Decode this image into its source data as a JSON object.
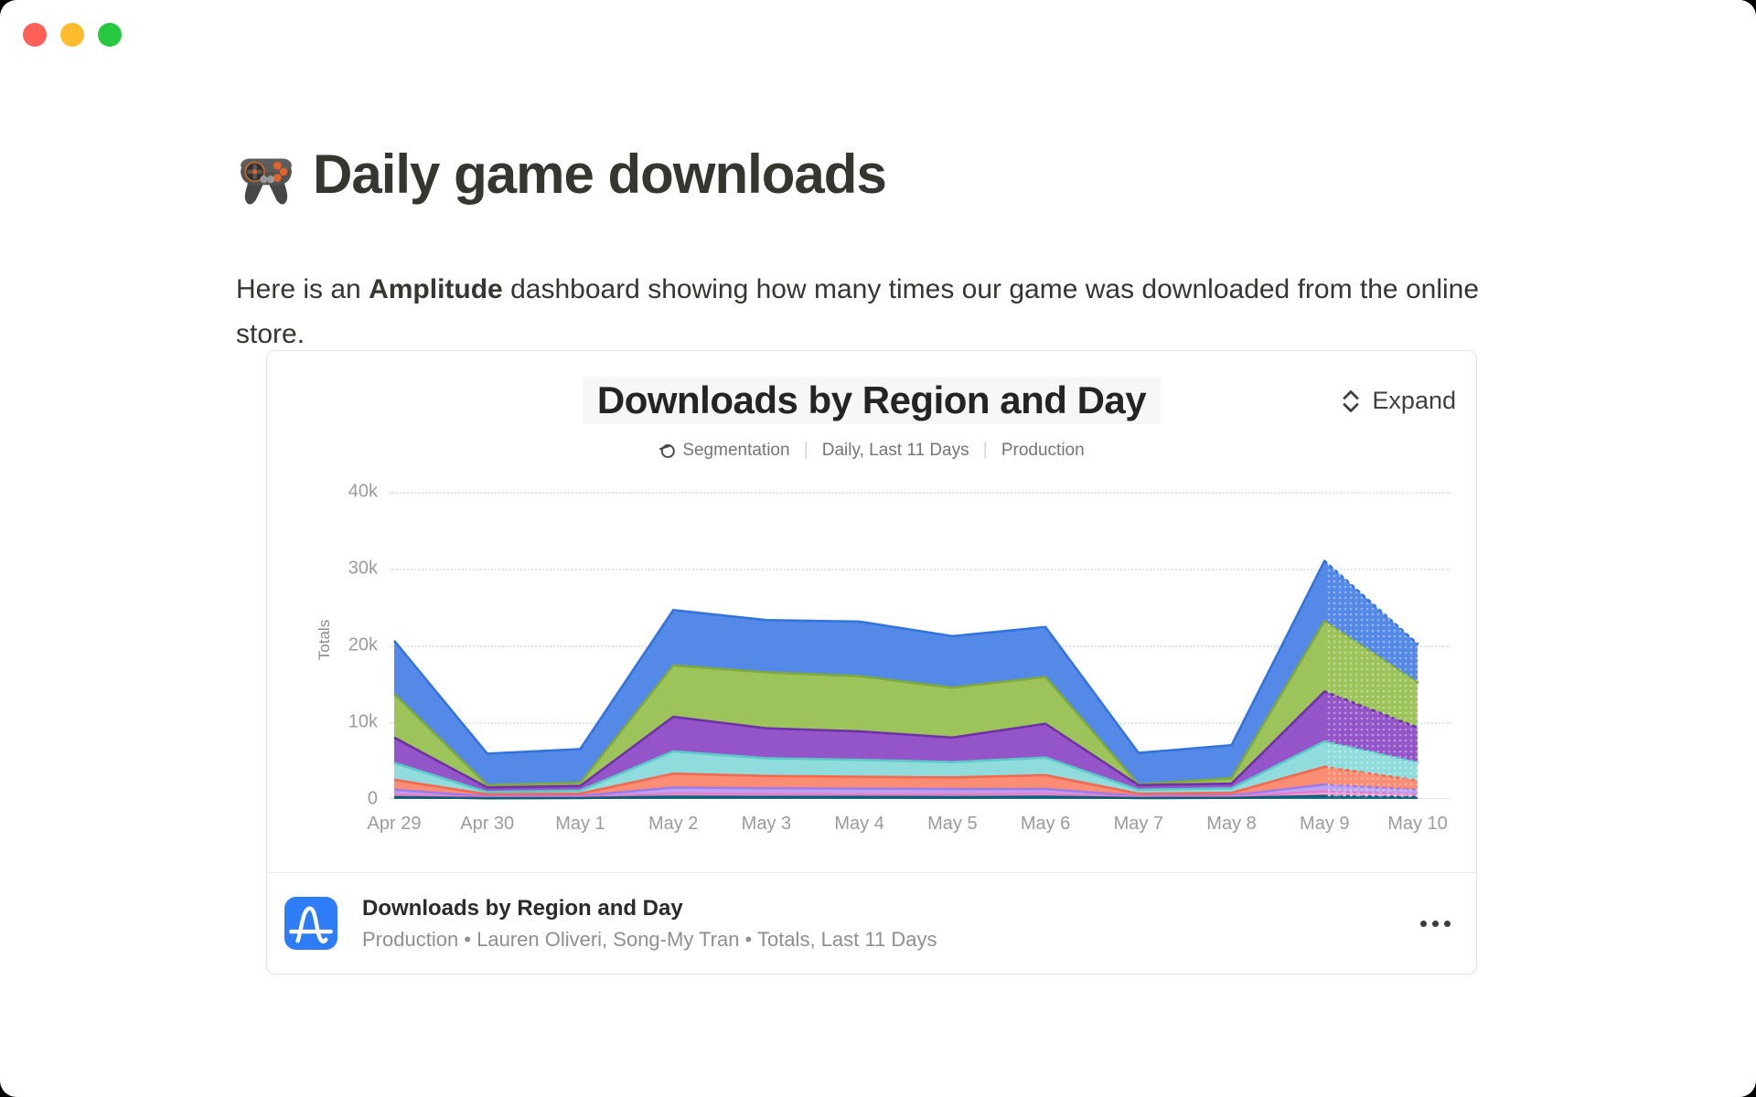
{
  "window": {
    "traffic_lights": [
      "close",
      "minimize",
      "zoom"
    ]
  },
  "page": {
    "title": "Daily game downloads",
    "title_icon": "gamepad-emoji",
    "intro_part1": "Here is an ",
    "intro_bold": "Amplitude",
    "intro_part2": " dashboard showing how many times our game was downloaded from the online store."
  },
  "card": {
    "header": {
      "title": "Downloads by Region and Day",
      "expand_label": "Expand"
    },
    "meta": {
      "chart_type": "Segmentation",
      "interval": "Daily, Last 11 Days",
      "environment": "Production"
    },
    "footer": {
      "title": "Downloads by Region and Day",
      "subtitle": "Production • Lauren Oliveri, Song-My Tran • Totals, Last 11 Days"
    }
  },
  "colors": {
    "amplitude_blue": "#2e7cf6",
    "card_border": "#e4e4e2",
    "gridline": "#dbe4ec"
  },
  "chart_data": {
    "type": "area",
    "stacked": true,
    "title": "Downloads by Region and Day",
    "ylabel": "Totals",
    "x": [
      "Apr 29",
      "Apr 30",
      "May 1",
      "May 2",
      "May 3",
      "May 4",
      "May 5",
      "May 6",
      "May 7",
      "May 8",
      "May 9",
      "May 10"
    ],
    "yticks": [
      {
        "label": "0",
        "value": 0
      },
      {
        "label": "10k",
        "value": 10000
      },
      {
        "label": "20k",
        "value": 20000
      },
      {
        "label": "30k",
        "value": 30000
      },
      {
        "label": "40k",
        "value": 40000
      }
    ],
    "ylim": [
      0,
      40000
    ],
    "grid": "dotted-horizontal",
    "legend": "none",
    "last_segment_dashed": true,
    "series_note": "no legend shown; series named by color, listed bottom-to-top of stack",
    "series": [
      {
        "name": "dark-teal",
        "fill": "#1b6f8c",
        "stroke": "#145d77",
        "values": [
          250,
          100,
          120,
          300,
          280,
          270,
          250,
          300,
          120,
          150,
          400,
          250
        ]
      },
      {
        "name": "pink",
        "fill": "#f0a6dc",
        "stroke": "#e77cc9",
        "values": [
          350,
          100,
          130,
          400,
          370,
          330,
          350,
          400,
          130,
          150,
          600,
          350
        ]
      },
      {
        "name": "lavender",
        "fill": "#bca2f2",
        "stroke": "#9f7be8",
        "values": [
          600,
          150,
          150,
          800,
          750,
          750,
          700,
          600,
          150,
          150,
          900,
          600
        ]
      },
      {
        "name": "salmon",
        "fill": "#fa8d73",
        "stroke": "#f3684e",
        "values": [
          1300,
          250,
          300,
          1800,
          1600,
          1550,
          1500,
          1800,
          300,
          350,
          2300,
          1200
        ]
      },
      {
        "name": "teal",
        "fill": "#90dcdc",
        "stroke": "#5bc8c8",
        "values": [
          2200,
          300,
          400,
          2900,
          2300,
          2200,
          2000,
          2300,
          500,
          600,
          3300,
          2400
        ]
      },
      {
        "name": "purple",
        "fill": "#9355c8",
        "stroke": "#7030a8",
        "values": [
          3300,
          600,
          600,
          4500,
          3900,
          3700,
          3200,
          4400,
          600,
          600,
          6500,
          4500
        ]
      },
      {
        "name": "green",
        "fill": "#9cc45a",
        "stroke": "#7fa93a",
        "values": [
          5700,
          300,
          400,
          6700,
          7300,
          7200,
          6500,
          6100,
          100,
          700,
          9200,
          5900
        ]
      },
      {
        "name": "blue",
        "fill": "#5489e8",
        "stroke": "#3273dc",
        "values": [
          6900,
          4100,
          4400,
          7200,
          6800,
          7100,
          6700,
          6500,
          4100,
          4300,
          7800,
          5000
        ]
      }
    ]
  }
}
